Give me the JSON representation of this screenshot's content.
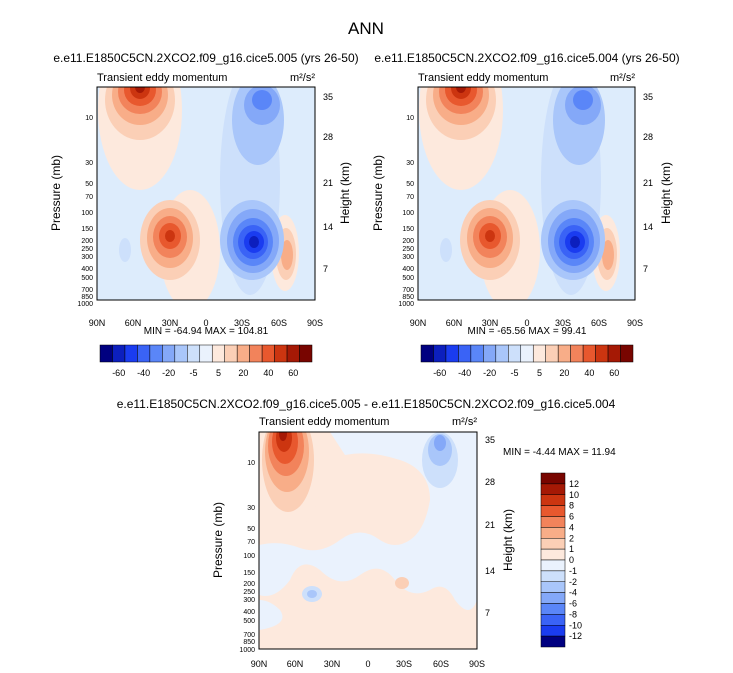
{
  "page_title": "ANN",
  "chart_data": [
    {
      "type": "heatmap",
      "title": "e.e11.E1850C5CN.2XCO2.f09_g16.cice5.005 (yrs 26-50)",
      "field_label": "Transient eddy momentum",
      "units": "m²/s²",
      "ylabel": "Pressure (mb)",
      "y2label": "Height (km)",
      "x_ticks": [
        "90N",
        "60N",
        "30N",
        "0",
        "30S",
        "60S",
        "90S"
      ],
      "y_ticks": [
        "10",
        "30",
        "50",
        "70",
        "100",
        "150",
        "200",
        "250",
        "300",
        "400",
        "500",
        "700",
        "850",
        "1000"
      ],
      "y2_ticks": [
        "35",
        "28",
        "21",
        "14",
        "7"
      ],
      "stats": "MIN = -64.94  MAX = 104.81",
      "min": -64.94,
      "max": 104.81
    },
    {
      "type": "heatmap",
      "title": "e.e11.E1850C5CN.2XCO2.f09_g16.cice5.004 (yrs 26-50)",
      "field_label": "Transient eddy momentum",
      "units": "m²/s²",
      "ylabel": "Pressure (mb)",
      "y2label": "Height (km)",
      "x_ticks": [
        "90N",
        "60N",
        "30N",
        "0",
        "30S",
        "60S",
        "90S"
      ],
      "y_ticks": [
        "10",
        "30",
        "50",
        "70",
        "100",
        "150",
        "200",
        "250",
        "300",
        "400",
        "500",
        "700",
        "850",
        "1000"
      ],
      "y2_ticks": [
        "35",
        "28",
        "21",
        "14",
        "7"
      ],
      "stats": "MIN = -65.56  MAX = 99.41",
      "min": -65.56,
      "max": 99.41
    },
    {
      "type": "heatmap",
      "title": "e.e11.E1850C5CN.2XCO2.f09_g16.cice5.005 - e.e11.E1850C5CN.2XCO2.f09_g16.cice5.004",
      "field_label": "Transient eddy momentum",
      "units": "m²/s²",
      "ylabel": "Pressure (mb)",
      "y2label": "Height (km)",
      "x_ticks": [
        "90N",
        "60N",
        "30N",
        "0",
        "30S",
        "60S",
        "90S"
      ],
      "y_ticks": [
        "10",
        "30",
        "50",
        "70",
        "100",
        "150",
        "200",
        "250",
        "300",
        "400",
        "500",
        "700",
        "850",
        "1000"
      ],
      "y2_ticks": [
        "35",
        "28",
        "21",
        "14",
        "7"
      ],
      "stats": "MIN = -4.44  MAX = 11.94",
      "min": -4.44,
      "max": 11.94
    }
  ],
  "colorbar_top": {
    "labels": [
      "-60",
      "-40",
      "-20",
      "-5",
      "5",
      "20",
      "40",
      "60"
    ],
    "colors": [
      "#000080",
      "#0c1fbe",
      "#1a3cf0",
      "#3a63f6",
      "#5a86f8",
      "#84a8f8",
      "#a9c6fa",
      "#cde0fb",
      "#eaf2fd",
      "#fde9dd",
      "#fbcfb6",
      "#f8ad88",
      "#f2835b",
      "#e8582e",
      "#cc3510",
      "#a51905",
      "#780500"
    ]
  },
  "colorbar_diff": {
    "labels": [
      "12",
      "10",
      "8",
      "6",
      "4",
      "2",
      "1",
      "0",
      "-1",
      "-2",
      "-4",
      "-6",
      "-8",
      "-10",
      "-12"
    ],
    "colors": [
      "#780500",
      "#a51905",
      "#cc3510",
      "#e8582e",
      "#f2835b",
      "#f8ad88",
      "#fbcfb6",
      "#fde9dd",
      "#eaf2fd",
      "#cde0fb",
      "#a9c6fa",
      "#84a8f8",
      "#5a86f8",
      "#3a63f6",
      "#1a3cf0",
      "#000080"
    ]
  }
}
